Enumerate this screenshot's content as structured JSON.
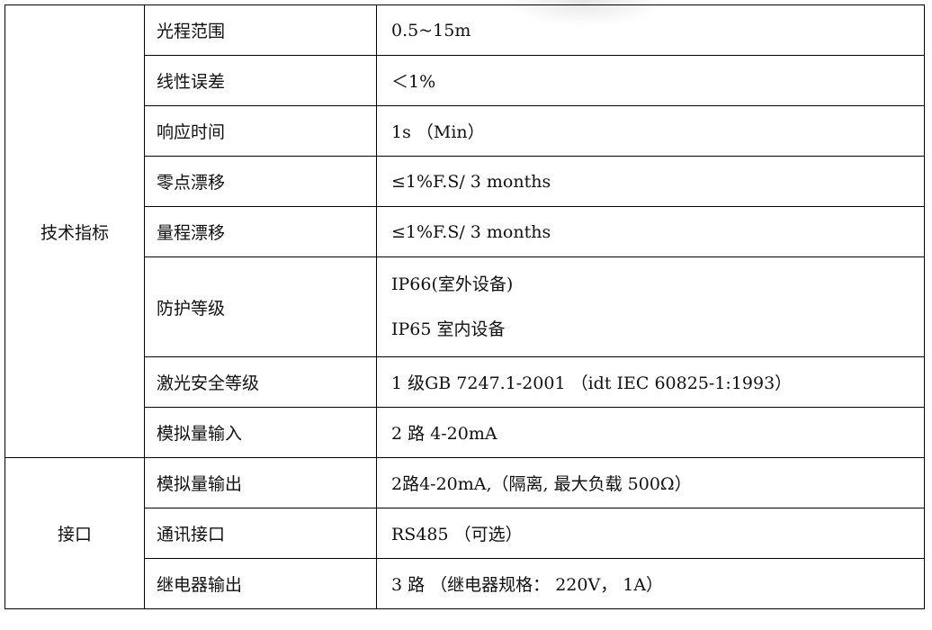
{
  "sections": [
    {
      "category": "技术指标",
      "rows": [
        {
          "label": "光程范围",
          "values": [
            "0.5~15m"
          ]
        },
        {
          "label": "线性误差",
          "values": [
            "＜1%"
          ]
        },
        {
          "label": "响应时间",
          "values": [
            "1s （Min）"
          ]
        },
        {
          "label": "零点漂移",
          "values": [
            "≤1%F.S/ 3 months"
          ]
        },
        {
          "label": "量程漂移",
          "values": [
            "≤1%F.S/ 3 months"
          ]
        },
        {
          "label": "防护等级",
          "values": [
            "IP66(室外设备)",
            "IP65  室内设备"
          ]
        },
        {
          "label": "激光安全等级",
          "values": [
            "1 级GB 7247.1-2001 （idt IEC 60825-1:1993）"
          ]
        },
        {
          "label": "模拟量输入",
          "values": [
            "2 路 4-20mA"
          ]
        }
      ]
    },
    {
      "category": "接口",
      "rows": [
        {
          "label": "模拟量输出",
          "values": [
            "2路4-20mA,（隔离, 最大负载 500Ω）"
          ]
        },
        {
          "label": "通讯接口",
          "values": [
            "RS485 （可选）"
          ]
        },
        {
          "label": "继电器输出",
          "values": [
            "3 路 （继电器规格： 220V， 1A）"
          ]
        }
      ]
    }
  ]
}
